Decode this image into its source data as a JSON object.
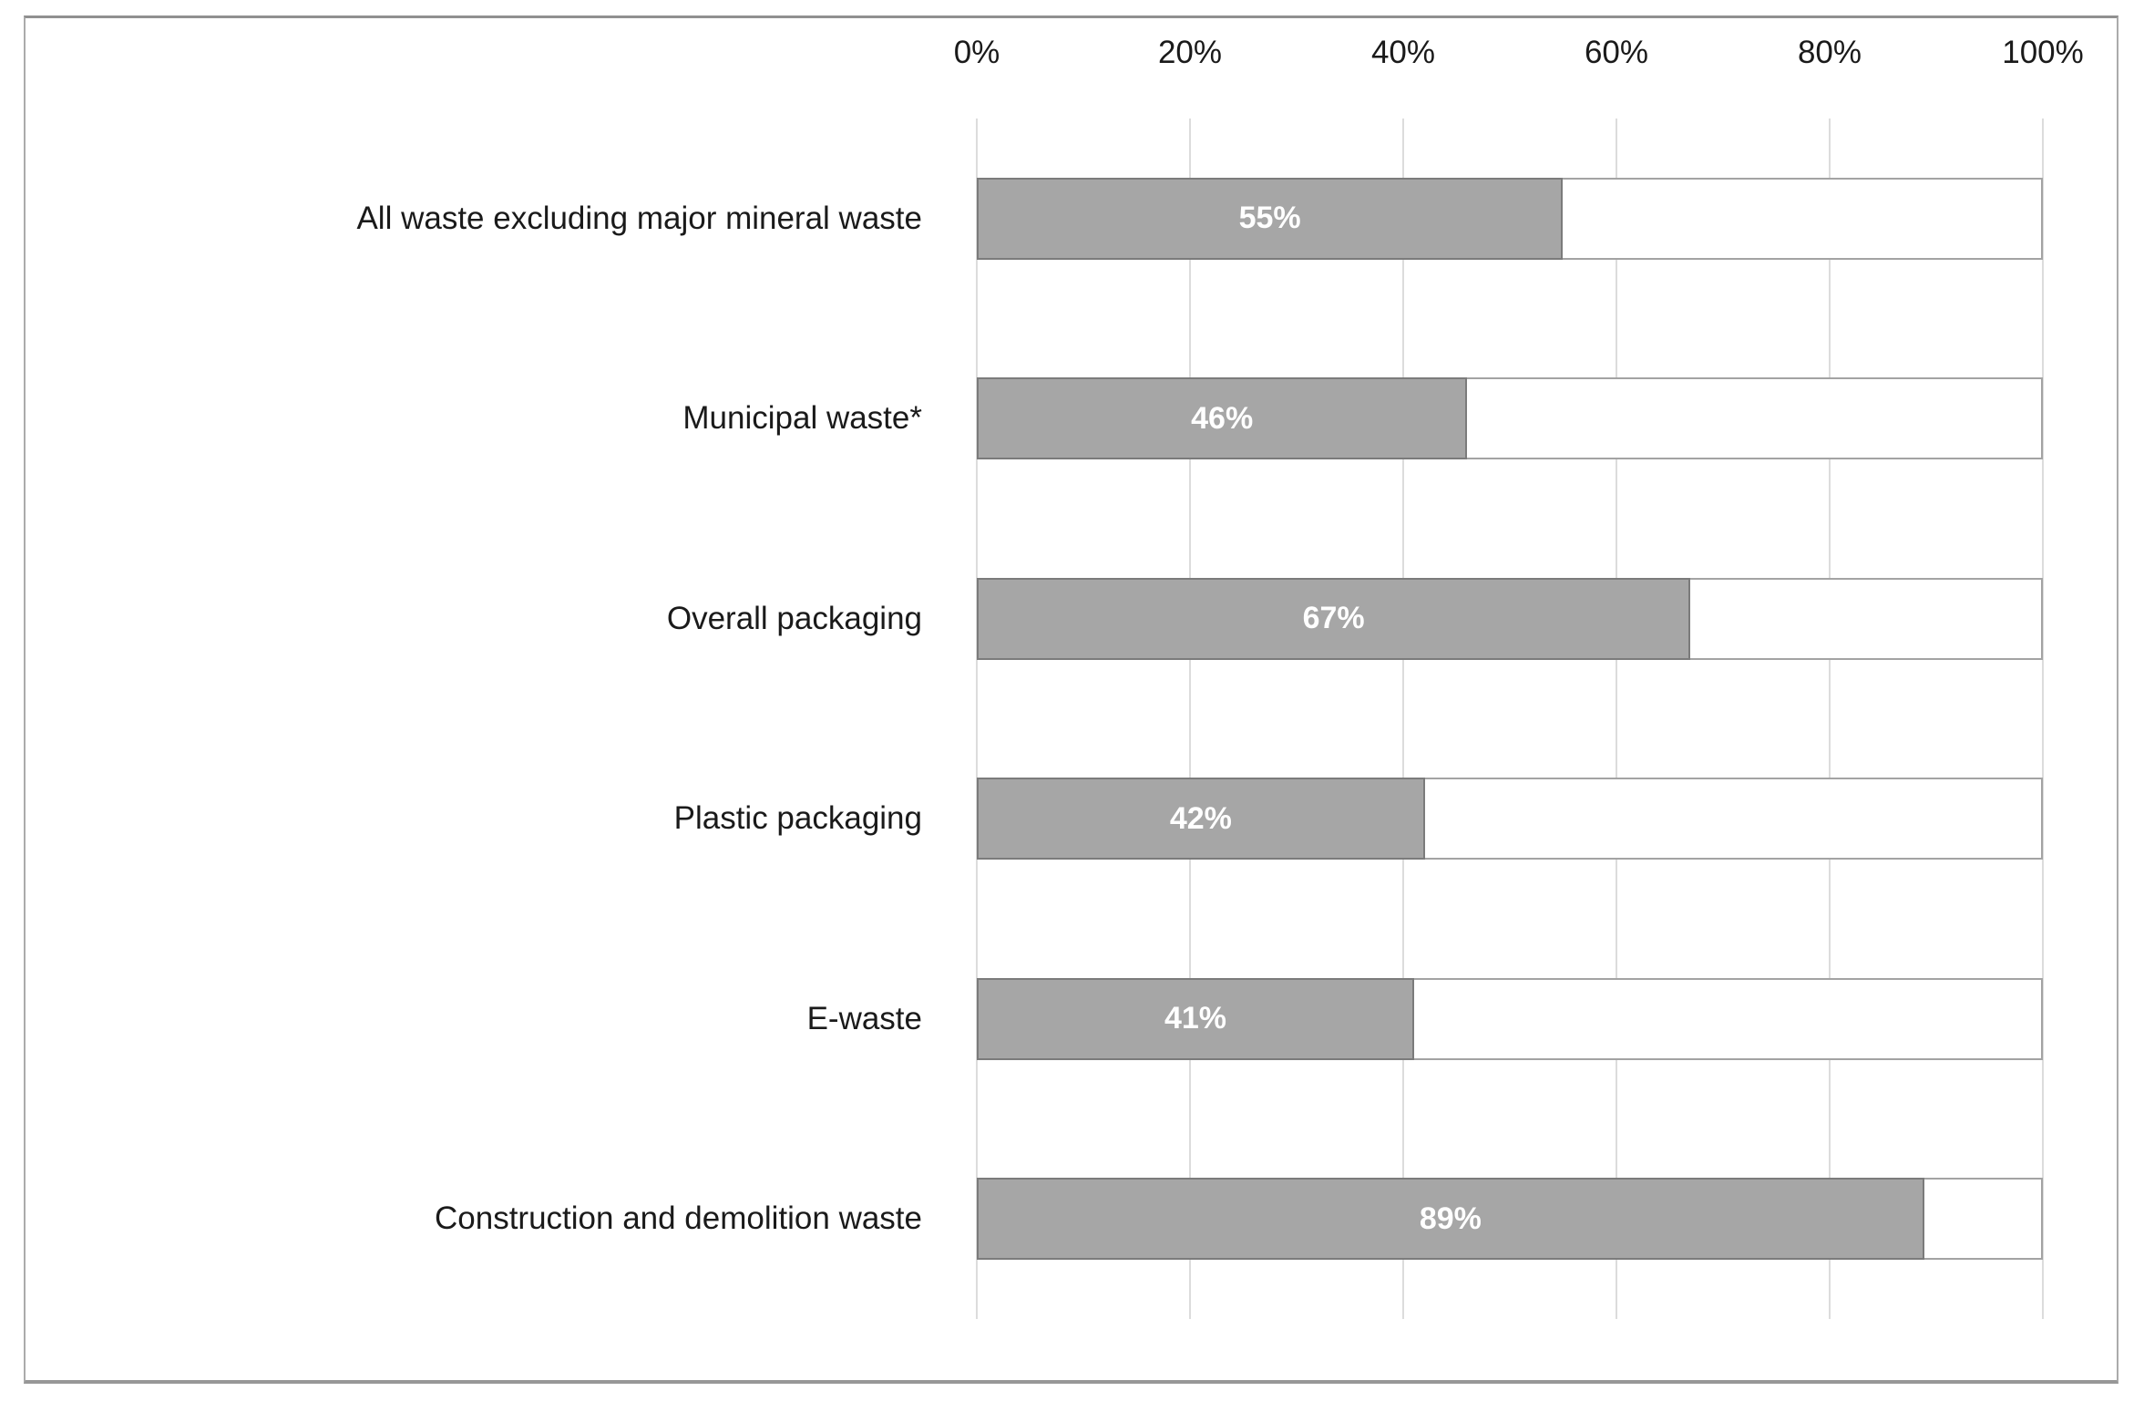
{
  "chart_data": {
    "type": "bar",
    "orientation": "horizontal",
    "title": "",
    "xlabel": "",
    "ylabel": "",
    "categories": [
      "All waste excluding major mineral waste",
      "Municipal waste*",
      "Overall packaging",
      "Plastic packaging",
      "E-waste",
      "Construction and demolition waste"
    ],
    "values": [
      55,
      46,
      67,
      42,
      41,
      89
    ],
    "value_labels": [
      "55%",
      "46%",
      "67%",
      "42%",
      "41%",
      "89%"
    ],
    "x_ticks": [
      "0%",
      "20%",
      "40%",
      "60%",
      "80%",
      "100%"
    ],
    "x_tick_values": [
      0,
      20,
      40,
      60,
      80,
      100
    ],
    "xlim": [
      0,
      100
    ],
    "grid": "vertical-only",
    "legend": "none",
    "axis_position": "top",
    "colors": {
      "bar_fill": "#a6a6a6",
      "bar_border": "#7b7b7b",
      "track_fill": "#ffffff",
      "track_border": "#a3a3a3",
      "gridline": "#dcdcdc",
      "frame_border": "#9a9a9a",
      "value_text": "#ffffff",
      "axis_text": "#1a1a1a"
    }
  }
}
